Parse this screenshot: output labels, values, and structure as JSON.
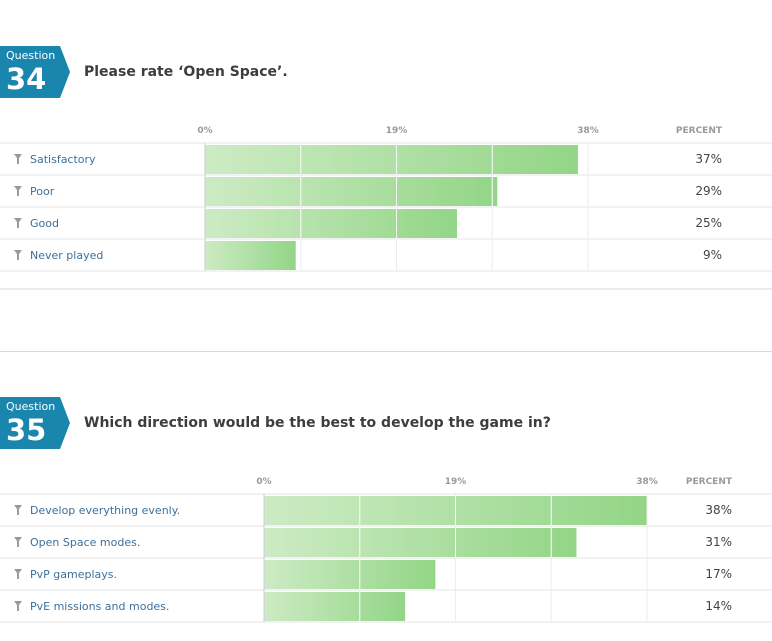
{
  "colors": {
    "badge": "#1a86ad",
    "bar_start": "#cdebc4",
    "bar_end": "#93d587",
    "category_text": "#3f6f99",
    "title_text": "#3d3d3d"
  },
  "icons": {
    "row": "filter-icon"
  },
  "questions": [
    {
      "label": "Question",
      "number": "34",
      "title": "Please rate ‘Open Space’."
    },
    {
      "label": "Question",
      "number": "35",
      "title": "Which direction would be the best to develop the game in?"
    }
  ],
  "chart_data": [
    {
      "type": "bar",
      "orientation": "horizontal",
      "categories": [
        "Satisfactory",
        "Poor",
        "Good",
        "Never played"
      ],
      "values": [
        37,
        29,
        25,
        9
      ],
      "value_labels": [
        "37%",
        "29%",
        "25%",
        "9%"
      ],
      "xlim": [
        0,
        38
      ],
      "ticks": [
        0,
        19,
        38
      ],
      "tick_labels": [
        "0%",
        "19%",
        "38%"
      ],
      "value_header": "PERCENT",
      "grid": true
    },
    {
      "type": "bar",
      "orientation": "horizontal",
      "categories": [
        "Develop everything evenly.",
        "Open Space modes.",
        "PvP gameplays.",
        "PvE missions and modes."
      ],
      "values": [
        38,
        31,
        17,
        14
      ],
      "value_labels": [
        "38%",
        "31%",
        "17%",
        "14%"
      ],
      "xlim": [
        0,
        38
      ],
      "ticks": [
        0,
        19,
        38
      ],
      "tick_labels": [
        "0%",
        "19%",
        "38%"
      ],
      "value_header": "PERCENT",
      "grid": true
    }
  ]
}
